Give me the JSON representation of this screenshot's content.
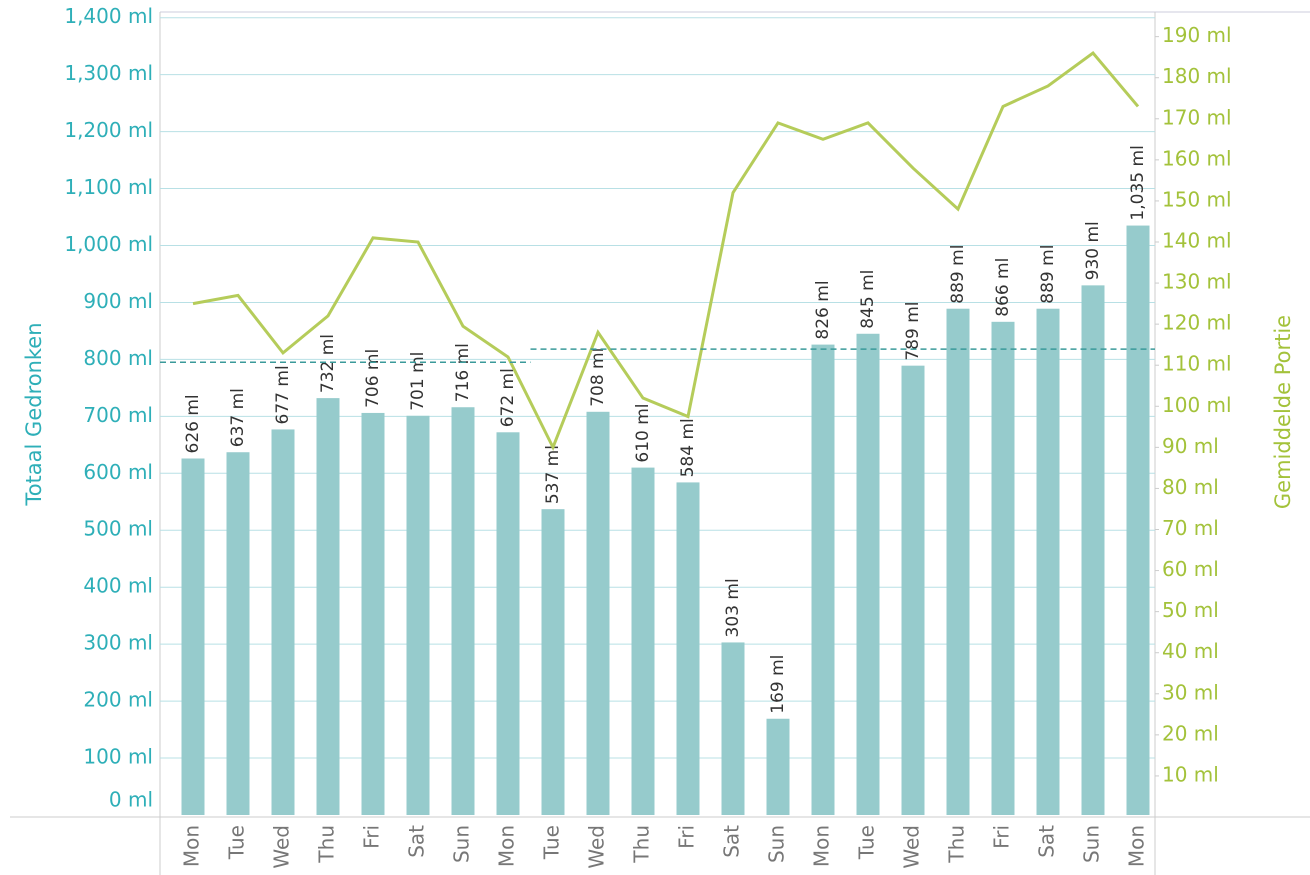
{
  "chart_data": {
    "type": "bar",
    "y_label": "Totaal Gedronken",
    "y2_label": "Gemiddelde Portie",
    "categories": [
      "Mon",
      "Tue",
      "Wed",
      "Thu",
      "Fri",
      "Sat",
      "Sun",
      "Mon",
      "Tue",
      "Wed",
      "Thu",
      "Fri",
      "Sat",
      "Sun",
      "Mon",
      "Tue",
      "Wed",
      "Thu",
      "Fri",
      "Sat",
      "Sun",
      "Mon"
    ],
    "series": [
      {
        "type": "bar",
        "color": "#96cbcc",
        "values": [
          626,
          637,
          677,
          732,
          706,
          701,
          716,
          672,
          537,
          708,
          610,
          584,
          303,
          169,
          826,
          845,
          789,
          889,
          866,
          889,
          930,
          1035
        ],
        "value_labels": [
          "626 ml",
          "637 ml",
          "677 ml",
          "732 ml",
          "706 ml",
          "701 ml",
          "716 ml",
          "672 ml",
          "537 ml",
          "708 ml",
          "610 ml",
          "584 ml",
          "303 ml",
          "169 ml",
          "826 ml",
          "845 ml",
          "789 ml",
          "889 ml",
          "866 ml",
          "889 ml",
          "930 ml",
          "1,035 ml"
        ]
      },
      {
        "type": "line",
        "axis": "y2",
        "color": "#b5cc5a",
        "values": [
          125,
          127,
          113,
          122,
          141,
          140,
          119.5,
          112,
          90,
          118,
          102,
          97.5,
          152,
          169,
          165,
          169,
          158,
          148,
          173,
          178,
          186,
          173
        ]
      }
    ],
    "averages": [
      {
        "value": 795,
        "categories": [
          0,
          7
        ]
      },
      {
        "value": 818,
        "categories": [
          8,
          21
        ]
      }
    ],
    "average_color": "#3a9a9a",
    "ylim": [
      0,
      1410
    ],
    "yticks": [
      {
        "value": 0,
        "label": "0 ml"
      },
      {
        "value": 100,
        "label": "100 ml"
      },
      {
        "value": 200,
        "label": "200 ml"
      },
      {
        "value": 300,
        "label": "300 ml"
      },
      {
        "value": 400,
        "label": "400 ml"
      },
      {
        "value": 500,
        "label": "500 ml"
      },
      {
        "value": 600,
        "label": "600 ml"
      },
      {
        "value": 700,
        "label": "700 ml"
      },
      {
        "value": 800,
        "label": "800 ml"
      },
      {
        "value": 900,
        "label": "900 ml"
      },
      {
        "value": 1000,
        "label": "1,000 ml"
      },
      {
        "value": 1100,
        "label": "1,100 ml"
      },
      {
        "value": 1200,
        "label": "1,200 ml"
      },
      {
        "value": 1300,
        "label": "1,300 ml"
      },
      {
        "value": 1400,
        "label": "1,400 ml"
      }
    ],
    "y2lim": [
      0,
      196
    ],
    "y2ticks": [
      {
        "value": 10,
        "label": "10 ml"
      },
      {
        "value": 20,
        "label": "20 ml"
      },
      {
        "value": 30,
        "label": "30 ml"
      },
      {
        "value": 40,
        "label": "40 ml"
      },
      {
        "value": 50,
        "label": "50 ml"
      },
      {
        "value": 60,
        "label": "60 ml"
      },
      {
        "value": 70,
        "label": "70 ml"
      },
      {
        "value": 80,
        "label": "80 ml"
      },
      {
        "value": 90,
        "label": "90 ml"
      },
      {
        "value": 100,
        "label": "100 ml"
      },
      {
        "value": 110,
        "label": "110 ml"
      },
      {
        "value": 120,
        "label": "120 ml"
      },
      {
        "value": 130,
        "label": "130 ml"
      },
      {
        "value": 140,
        "label": "140 ml"
      },
      {
        "value": 150,
        "label": "150 ml"
      },
      {
        "value": 160,
        "label": "160 ml"
      },
      {
        "value": 170,
        "label": "170 ml"
      },
      {
        "value": 180,
        "label": "180 ml"
      },
      {
        "value": 190,
        "label": "190 ml"
      }
    ],
    "grid": true,
    "y_color": "#2eafb8",
    "y2_color": "#a3c23a"
  }
}
